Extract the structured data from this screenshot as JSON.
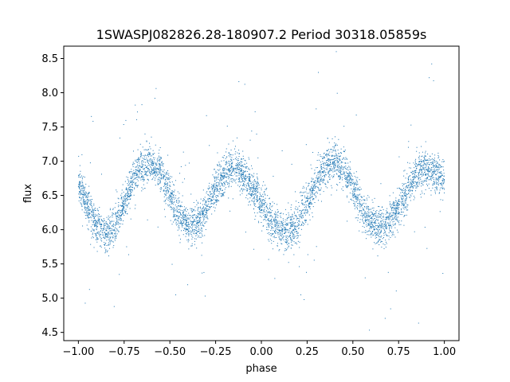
{
  "chart_data": {
    "type": "scatter",
    "title": "1SWASPJ082826.28-180907.2 Period 30318.05859s",
    "xlabel": "phase",
    "ylabel": "flux",
    "xlim": [
      -1.08,
      1.08
    ],
    "ylim": [
      4.38,
      8.68
    ],
    "xticks": [
      -1.0,
      -0.75,
      -0.5,
      -0.25,
      0.0,
      0.25,
      0.5,
      0.75,
      1.0
    ],
    "xtick_labels": [
      "−1.00",
      "−0.75",
      "−0.50",
      "−0.25",
      "0.00",
      "0.25",
      "0.50",
      "0.75",
      "1.00"
    ],
    "yticks": [
      4.5,
      5.0,
      5.5,
      6.0,
      6.5,
      7.0,
      7.5,
      8.0,
      8.5
    ],
    "ytick_labels": [
      "4.5",
      "5.0",
      "5.5",
      "6.0",
      "6.5",
      "7.0",
      "7.5",
      "8.0",
      "8.5"
    ],
    "grid": false,
    "legend": "none",
    "marker_color": "#1f77b4",
    "series": [
      {
        "x": [
          -1.0,
          -0.95,
          -0.9,
          -0.85,
          -0.8,
          -0.75,
          -0.7,
          -0.65,
          -0.6,
          -0.55,
          -0.5,
          -0.45,
          -0.4,
          -0.35,
          -0.3,
          -0.25,
          -0.2,
          -0.15,
          -0.1,
          -0.05,
          0.0,
          0.05,
          0.1,
          0.15,
          0.2,
          0.25,
          0.3,
          0.35,
          0.4,
          0.45,
          0.5,
          0.55,
          0.6,
          0.65,
          0.7,
          0.75,
          0.8,
          0.85,
          0.9,
          0.95,
          1.0
        ],
        "y": [
          6.7,
          6.35,
          6.05,
          5.92,
          6.05,
          6.38,
          6.75,
          6.95,
          6.97,
          6.82,
          6.5,
          6.2,
          6.05,
          6.07,
          6.3,
          6.6,
          6.8,
          6.88,
          6.82,
          6.6,
          6.4,
          6.15,
          5.98,
          5.95,
          6.1,
          6.4,
          6.72,
          6.92,
          7.0,
          6.9,
          6.6,
          6.3,
          6.1,
          6.02,
          6.1,
          6.35,
          6.6,
          6.8,
          6.9,
          6.85,
          6.7
        ]
      }
    ]
  }
}
